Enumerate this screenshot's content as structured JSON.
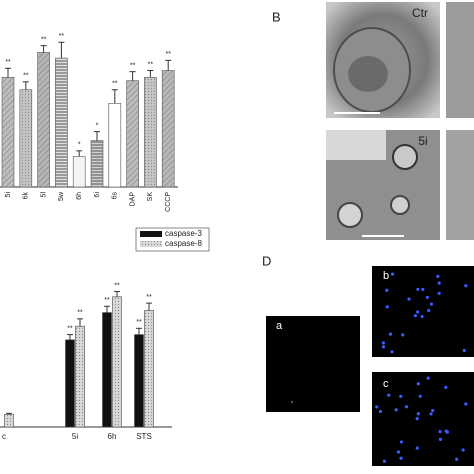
{
  "chart_data": [
    {
      "type": "bar",
      "categories": [
        "5i",
        "6k",
        "5l",
        "5w",
        "6h",
        "6i",
        "6s",
        "DAP",
        "SK",
        "CCCP"
      ],
      "values": [
        97,
        86,
        119,
        114,
        27,
        41,
        74,
        94,
        97,
        103
      ],
      "errors": [
        8,
        7,
        6,
        14,
        5,
        8,
        12,
        8,
        6,
        9
      ],
      "colors": [
        "#bdbdbd",
        "#c4c4c4",
        "#b5b5b5",
        "#e0e0e0",
        "#f4f4f4",
        "#d0d0d0",
        "#ffffff",
        "#bcbcbc",
        "#c6c6c6",
        "#b8b8b8"
      ],
      "annotations": [
        "**",
        "**",
        "**",
        "**",
        "*",
        "*",
        "**",
        "**",
        "**",
        "**"
      ],
      "ylim": [
        0,
        130
      ]
    },
    {
      "type": "grouped-bar",
      "categories": [
        "c",
        "5i",
        "6h",
        "STS"
      ],
      "series": [
        {
          "name": "caspase-3",
          "color": "#111111",
          "values": [
            null,
            83,
            109,
            88
          ],
          "errors": [
            null,
            5,
            6,
            6
          ],
          "annotations": [
            null,
            "**",
            "**",
            "**"
          ]
        },
        {
          "name": "caspase-8",
          "color": "#d9d9d9",
          "values": [
            12,
            96,
            124,
            111
          ],
          "errors": [
            1,
            7,
            5,
            7
          ],
          "annotations": [
            null,
            "**",
            "**",
            "**"
          ]
        }
      ],
      "ylim": [
        0,
        140
      ]
    }
  ],
  "panel_labels": [
    "B",
    "D"
  ],
  "image_labels": {
    "em_control": "Ctr",
    "em_treated": "5i",
    "fluor_a": "a",
    "fluor_b": "b",
    "fluor_c": "c"
  }
}
